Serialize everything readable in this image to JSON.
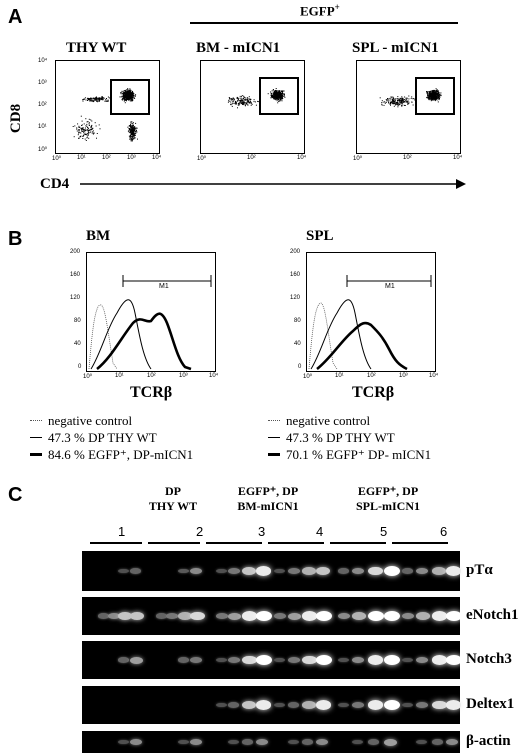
{
  "panelA": {
    "letter": "A",
    "egfp_label": "EGFP",
    "egfp_sup": "+",
    "plots": [
      {
        "title": "THY WT"
      },
      {
        "title": "BM - mICN1"
      },
      {
        "title": "SPL - mICN1"
      }
    ],
    "y_axis": "CD8",
    "x_axis": "CD4",
    "tick_labels": [
      "10⁰",
      "10¹",
      "10²",
      "10³",
      "10⁴"
    ]
  },
  "panelB": {
    "letter": "B",
    "plots": [
      {
        "title": "BM",
        "gate": "M1",
        "xlabel": "TCRβ"
      },
      {
        "title": "SPL",
        "gate": "M1",
        "xlabel": "TCRβ"
      }
    ],
    "y_ticks": [
      "0",
      "40",
      "80",
      "120",
      "160",
      "200"
    ],
    "x_ticks": [
      "10⁰",
      "10¹",
      "10²",
      "10³",
      "10⁴"
    ],
    "legend_left": [
      "negative control",
      "47.3 % DP THY WT",
      "84.6 % EGFP⁺, DP-mICN1"
    ],
    "legend_right": [
      "negative control",
      "47.3 % DP THY WT",
      "70.1 % EGFP⁺ DP- mICN1"
    ]
  },
  "panelC": {
    "letter": "C",
    "groups": [
      {
        "line1": "DP",
        "line2": "THY WT"
      },
      {
        "line1": "EGFP⁺, DP",
        "line2": "BM-mICN1"
      },
      {
        "line1": "EGFP⁺, DP",
        "line2": "SPL-mICN1"
      }
    ],
    "lanes": [
      "1",
      "2",
      "3",
      "4",
      "5",
      "6"
    ],
    "genes": [
      "pTα",
      "eNotch1",
      "Notch3",
      "Deltex1",
      "β-actin"
    ]
  }
}
